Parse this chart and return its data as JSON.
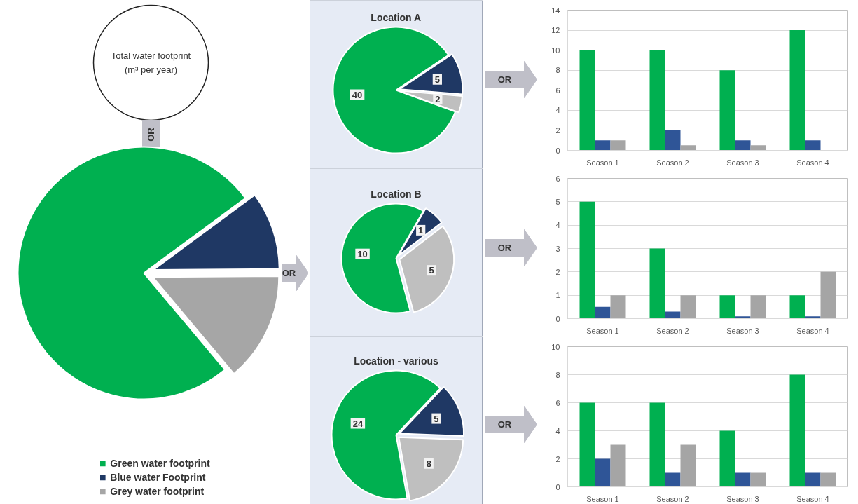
{
  "chart_data": [
    {
      "type": "pie",
      "categories": [
        "Green water footprint",
        "Blue water Footprint",
        "Grey water footprint"
      ],
      "values": [
        76,
        10,
        14
      ],
      "colors": [
        "#00b050",
        "#1f3864",
        "#a6a6a6"
      ],
      "legend": "bottom",
      "annotations": [
        "Total water footprint (m³ per year)",
        "OR",
        "OR"
      ]
    },
    {
      "type": "pie",
      "title": "Location A",
      "categories": [
        null,
        null,
        null
      ],
      "values": [
        40,
        5,
        2
      ],
      "colors": [
        "#00b050",
        "#1f3864",
        "#bfbfbf"
      ],
      "data_labels": true,
      "annotations": [
        "OR"
      ]
    },
    {
      "type": "pie",
      "title": "Location B",
      "categories": [
        null,
        null,
        null
      ],
      "values": [
        10,
        1,
        5
      ],
      "colors": [
        "#00b050",
        "#1f3864",
        "#bfbfbf"
      ],
      "data_labels": true,
      "annotations": [
        "OR"
      ]
    },
    {
      "type": "pie",
      "title": "Location - various",
      "categories": [
        null,
        null,
        null
      ],
      "values": [
        24,
        5,
        8
      ],
      "colors": [
        "#00b050",
        "#1f3864",
        "#bfbfbf"
      ],
      "data_labels": true,
      "annotations": [
        "OR"
      ]
    },
    {
      "type": "bar",
      "categories": [
        "Season 1",
        "Season 2",
        "Season 3",
        "Season 4"
      ],
      "ylim": [
        0,
        14
      ],
      "yticks": [
        0,
        2,
        4,
        6,
        8,
        10,
        12,
        14
      ],
      "grid": "y",
      "series": [
        {
          "color": "#00b050",
          "values": [
            10,
            10,
            8,
            12
          ]
        },
        {
          "color": "#2f5597",
          "values": [
            1,
            2,
            1,
            1
          ]
        },
        {
          "color": "#a5a5a5",
          "values": [
            1,
            0.5,
            0.5,
            0
          ]
        }
      ]
    },
    {
      "type": "bar",
      "categories": [
        "Season 1",
        "Season 2",
        "Season 3",
        "Season 4"
      ],
      "ylim": [
        0,
        6
      ],
      "yticks": [
        0,
        1,
        2,
        3,
        4,
        5,
        6
      ],
      "grid": "y",
      "series": [
        {
          "color": "#00b050",
          "values": [
            5,
            3,
            1,
            1
          ]
        },
        {
          "color": "#2f5597",
          "values": [
            0.5,
            0.3,
            0.1,
            0.1
          ]
        },
        {
          "color": "#a5a5a5",
          "values": [
            1,
            1,
            1,
            2
          ]
        }
      ]
    },
    {
      "type": "bar",
      "categories": [
        "Season 1",
        "Season 2",
        "Season 3",
        "Season 4"
      ],
      "ylim": [
        0,
        10
      ],
      "yticks": [
        0,
        2,
        4,
        6,
        8,
        10
      ],
      "grid": "y",
      "series": [
        {
          "color": "#00b050",
          "values": [
            6,
            6,
            4,
            8
          ]
        },
        {
          "color": "#2f5597",
          "values": [
            2,
            1,
            1,
            1
          ]
        },
        {
          "color": "#a5a5a5",
          "values": [
            3,
            3,
            1,
            1
          ]
        }
      ]
    }
  ]
}
